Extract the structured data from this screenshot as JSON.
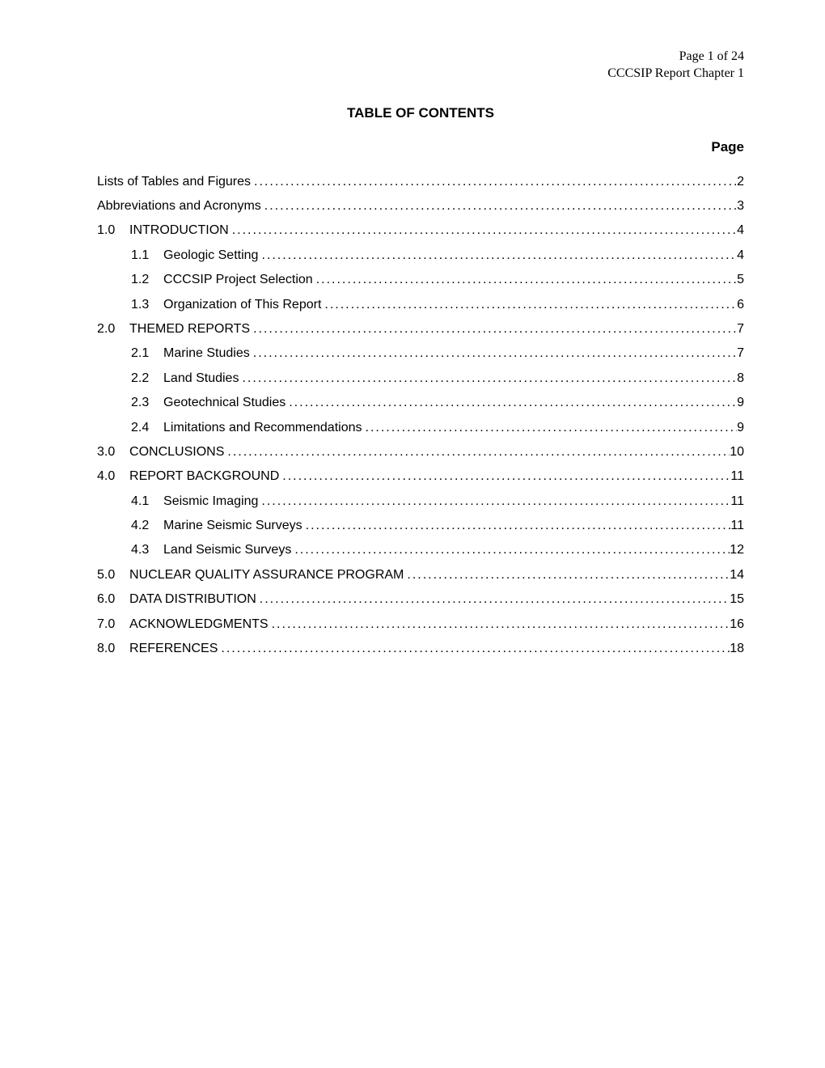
{
  "header": {
    "line1": "Page 1 of 24",
    "line2": "CCCSIP Report Chapter 1"
  },
  "title": "TABLE OF CONTENTS",
  "page_label": "Page",
  "entries": [
    {
      "level": 0,
      "num": "",
      "text": "Lists of Tables and Figures",
      "page": "2"
    },
    {
      "level": 0,
      "num": "",
      "text": "Abbreviations and Acronyms ",
      "page": "3"
    },
    {
      "level": 0,
      "num": "1.0",
      "text": "INTRODUCTION",
      "page": "4"
    },
    {
      "level": 1,
      "num": "1.1",
      "text": "Geologic Setting",
      "page": "4"
    },
    {
      "level": 1,
      "num": "1.2",
      "text": "CCCSIP Project Selection",
      "page": "5"
    },
    {
      "level": 1,
      "num": "1.3",
      "text": "Organization of This Report ",
      "page": "6"
    },
    {
      "level": 0,
      "num": "2.0",
      "text": "THEMED REPORTS",
      "page": "7"
    },
    {
      "level": 1,
      "num": "2.1",
      "text": "Marine Studies",
      "page": "7"
    },
    {
      "level": 1,
      "num": "2.2",
      "text": "Land Studies",
      "page": "8"
    },
    {
      "level": 1,
      "num": "2.3",
      "text": "Geotechnical Studies ",
      "page": "9"
    },
    {
      "level": 1,
      "num": "2.4",
      "text": "Limitations and Recommendations ",
      "page": "9"
    },
    {
      "level": 0,
      "num": "3.0",
      "text": "CONCLUSIONS",
      "page": "10"
    },
    {
      "level": 0,
      "num": "4.0",
      "text": "REPORT BACKGROUND",
      "page": "11"
    },
    {
      "level": 1,
      "num": "4.1",
      "text": "Seismic Imaging",
      "page": "11"
    },
    {
      "level": 1,
      "num": "4.2",
      "text": "Marine Seismic Surveys",
      "page": "11"
    },
    {
      "level": 1,
      "num": "4.3",
      "text": "Land Seismic Surveys",
      "page": "12"
    },
    {
      "level": 0,
      "num": "5.0",
      "text": "NUCLEAR QUALITY ASSURANCE PROGRAM",
      "page": "14"
    },
    {
      "level": 0,
      "num": "6.0",
      "text": "DATA DISTRIBUTION",
      "page": "15"
    },
    {
      "level": 0,
      "num": "7.0",
      "text": "ACKNOWLEDGMENTS ",
      "page": "16"
    },
    {
      "level": 0,
      "num": "8.0",
      "text": "REFERENCES",
      "page": "18"
    }
  ]
}
